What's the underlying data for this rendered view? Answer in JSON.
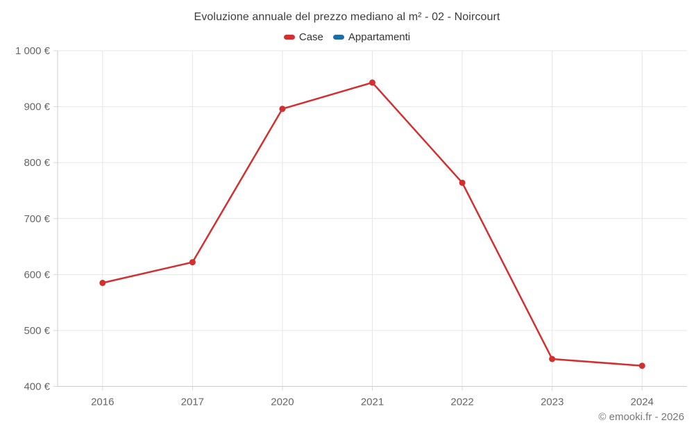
{
  "header": {
    "title": "Evoluzione annuale del prezzo mediano al m² - 02 - Noircourt"
  },
  "legend": {
    "items": [
      {
        "label": "Case",
        "color": "#d32f2f"
      },
      {
        "label": "Appartamenti",
        "color": "#1c6fa5"
      }
    ]
  },
  "credits": {
    "text": "© emooki.fr - 2026"
  },
  "chart_data": {
    "type": "line",
    "title": "Evoluzione annuale del prezzo mediano al m² - 02 - Noircourt",
    "categories": [
      "2016",
      "2017",
      "2020",
      "2021",
      "2022",
      "2023",
      "2024"
    ],
    "series": [
      {
        "name": "Case",
        "color": "#d32f2f",
        "values": [
          585,
          622,
          896,
          943,
          764,
          449,
          437
        ]
      },
      {
        "name": "Appartamenti",
        "color": "#1c6fa5",
        "values": []
      }
    ],
    "xlabel": "",
    "ylabel": "",
    "ylim": [
      400,
      1000
    ],
    "yticks": [
      {
        "value": 400,
        "label": "400 €"
      },
      {
        "value": 500,
        "label": "500 €"
      },
      {
        "value": 600,
        "label": "600 €"
      },
      {
        "value": 700,
        "label": "700 €"
      },
      {
        "value": 800,
        "label": "800 €"
      },
      {
        "value": 900,
        "label": "900 €"
      },
      {
        "value": 1000,
        "label": "1 000 €"
      }
    ],
    "grid": true,
    "legend_position": "top",
    "marker": "circle",
    "line_width": 2.5,
    "marker_radius": 4.5
  },
  "colors": {
    "background": "#ffffff",
    "grid": "#e6e6e6",
    "axis": "#cccccc",
    "tick": "#d8d8d8",
    "tick_label": "#666666",
    "title_text": "#3c3c3c",
    "legend_text": "#333333",
    "credits_text": "#777777"
  }
}
